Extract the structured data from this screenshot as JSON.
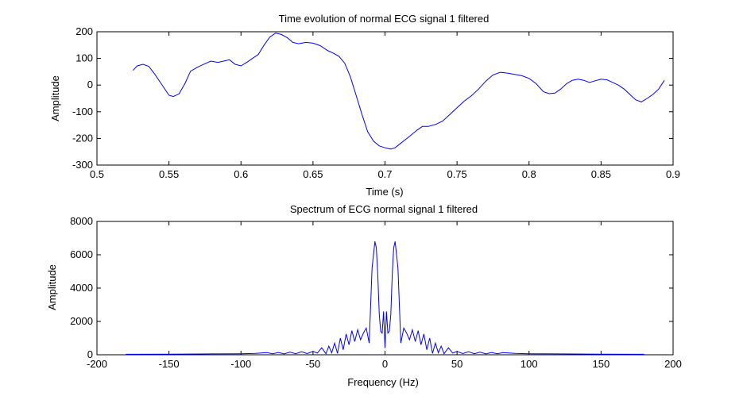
{
  "chart_data": [
    {
      "type": "line",
      "title": "Time evolution of normal ECG signal 1 filtered",
      "xlabel": "Time (s)",
      "ylabel": "Amplitude",
      "xlim": [
        0.5,
        0.9
      ],
      "ylim": [
        -300,
        200
      ],
      "xticks": [
        "0.5",
        "0.55",
        "0.6",
        "0.65",
        "0.7",
        "0.75",
        "0.8",
        "0.85",
        "0.9"
      ],
      "yticks": [
        "-300",
        "-200",
        "-100",
        "0",
        "100",
        "200"
      ],
      "grid": false,
      "series": [
        {
          "color": "#0000ff",
          "x": [
            0.525,
            0.528,
            0.532,
            0.536,
            0.54,
            0.545,
            0.55,
            0.553,
            0.557,
            0.561,
            0.565,
            0.57,
            0.575,
            0.579,
            0.584,
            0.588,
            0.592,
            0.596,
            0.6,
            0.604,
            0.608,
            0.612,
            0.616,
            0.62,
            0.624,
            0.628,
            0.632,
            0.636,
            0.64,
            0.645,
            0.65,
            0.655,
            0.66,
            0.664,
            0.668,
            0.672,
            0.676,
            0.68,
            0.684,
            0.688,
            0.692,
            0.696,
            0.7,
            0.704,
            0.707,
            0.71,
            0.714,
            0.718,
            0.722,
            0.726,
            0.73,
            0.735,
            0.74,
            0.745,
            0.75,
            0.755,
            0.76,
            0.765,
            0.77,
            0.775,
            0.78,
            0.785,
            0.79,
            0.795,
            0.8,
            0.805,
            0.81,
            0.814,
            0.818,
            0.822,
            0.826,
            0.83,
            0.834,
            0.838,
            0.842,
            0.846,
            0.85,
            0.854,
            0.858,
            0.862,
            0.866,
            0.87,
            0.874,
            0.878,
            0.882,
            0.886,
            0.89,
            0.894
          ],
          "y": [
            55,
            72,
            78,
            70,
            42,
            2,
            -38,
            -43,
            -33,
            5,
            52,
            68,
            80,
            90,
            85,
            90,
            95,
            78,
            72,
            85,
            100,
            115,
            150,
            180,
            195,
            190,
            178,
            160,
            155,
            160,
            157,
            148,
            130,
            120,
            108,
            82,
            30,
            -40,
            -110,
            -175,
            -210,
            -228,
            -235,
            -240,
            -235,
            -222,
            -205,
            -188,
            -170,
            -155,
            -155,
            -148,
            -135,
            -110,
            -85,
            -60,
            -40,
            -15,
            15,
            38,
            48,
            45,
            40,
            35,
            25,
            5,
            -25,
            -32,
            -30,
            -15,
            5,
            18,
            22,
            18,
            10,
            16,
            22,
            20,
            10,
            0,
            -15,
            -35,
            -55,
            -63,
            -50,
            -35,
            -15,
            18
          ]
        }
      ]
    },
    {
      "type": "line",
      "title": "Spectrum of ECG normal signal 1 filtered",
      "xlabel": "Frequency (Hz)",
      "ylabel": "Amplitude",
      "xlim": [
        -200,
        200
      ],
      "ylim": [
        0,
        8000
      ],
      "xticks": [
        "-200",
        "-150",
        "-100",
        "-50",
        "0",
        "50",
        "100",
        "150",
        "200"
      ],
      "yticks": [
        "0",
        "2000",
        "4000",
        "6000",
        "8000"
      ],
      "grid": false,
      "series": [
        {
          "color": "#0000ff",
          "x": [
            -180,
            -150,
            -120,
            -100,
            -90,
            -82,
            -78,
            -74,
            -70,
            -66,
            -62,
            -58,
            -54,
            -50,
            -47,
            -44,
            -41,
            -39,
            -37,
            -35,
            -33,
            -31,
            -29,
            -27,
            -25,
            -23,
            -21,
            -19,
            -17,
            -15,
            -13,
            -11,
            -9,
            -7,
            -6,
            -5,
            -4,
            -3,
            -2,
            -1,
            0,
            1,
            2,
            3,
            4,
            5,
            6,
            7,
            9,
            11,
            13,
            15,
            17,
            19,
            21,
            23,
            25,
            27,
            29,
            31,
            33,
            35,
            37,
            39,
            41,
            44,
            47,
            50,
            54,
            58,
            62,
            66,
            70,
            74,
            78,
            82,
            90,
            100,
            120,
            150,
            180
          ],
          "y": [
            30,
            40,
            50,
            60,
            80,
            130,
            60,
            140,
            50,
            160,
            60,
            180,
            70,
            200,
            100,
            420,
            60,
            520,
            120,
            700,
            80,
            1000,
            300,
            1250,
            600,
            1450,
            800,
            1500,
            900,
            1300,
            1600,
            700,
            5200,
            6800,
            6400,
            4800,
            2400,
            1400,
            1300,
            2600,
            400,
            2600,
            1300,
            1400,
            2400,
            4800,
            6400,
            6800,
            5200,
            700,
            1600,
            1300,
            900,
            1500,
            800,
            1450,
            600,
            1250,
            300,
            1000,
            80,
            700,
            120,
            520,
            60,
            420,
            100,
            200,
            70,
            180,
            60,
            160,
            50,
            140,
            60,
            130,
            80,
            60,
            50,
            40,
            30
          ]
        }
      ]
    }
  ]
}
